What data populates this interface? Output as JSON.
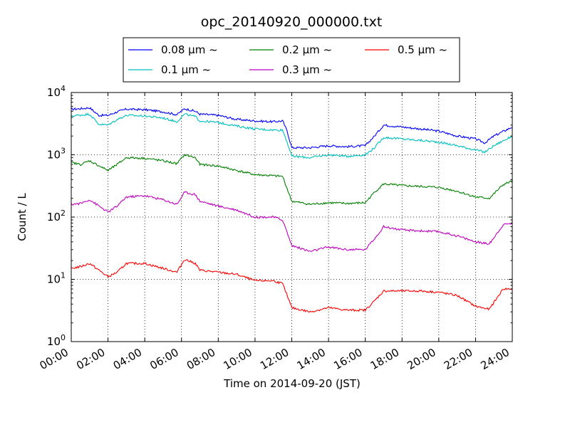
{
  "chart_data": {
    "type": "line",
    "title": "opc_20140920_000000.txt",
    "xlabel": "Time on 2014-09-20 (JST)",
    "ylabel": "Count / L",
    "xscale": "linear",
    "yscale": "log",
    "xlim": [
      "00:00",
      "24:00"
    ],
    "ylim": [
      1,
      10000
    ],
    "grid": true,
    "legend_position": "top-center",
    "x_ticks": [
      "00:00",
      "02:00",
      "04:00",
      "06:00",
      "08:00",
      "10:00",
      "12:00",
      "14:00",
      "16:00",
      "18:00",
      "20:00",
      "22:00",
      "24:00"
    ],
    "y_ticks": [
      {
        "base": "10",
        "exp": "0",
        "value": 1
      },
      {
        "base": "10",
        "exp": "1",
        "value": 10
      },
      {
        "base": "10",
        "exp": "2",
        "value": 100
      },
      {
        "base": "10",
        "exp": "3",
        "value": 1000
      },
      {
        "base": "10",
        "exp": "4",
        "value": 10000
      }
    ],
    "series": [
      {
        "name": "0.08 µm ~",
        "color": "#0000ff",
        "points": [
          [
            "00:00",
            5400
          ],
          [
            "00:30",
            5500
          ],
          [
            "01:00",
            5700
          ],
          [
            "01:30",
            4300
          ],
          [
            "02:00",
            4300
          ],
          [
            "02:30",
            4900
          ],
          [
            "03:00",
            5400
          ],
          [
            "04:00",
            5300
          ],
          [
            "05:00",
            4900
          ],
          [
            "05:45",
            4400
          ],
          [
            "06:10",
            5500
          ],
          [
            "06:45",
            5000
          ],
          [
            "07:00",
            4500
          ],
          [
            "08:00",
            4300
          ],
          [
            "09:00",
            3700
          ],
          [
            "10:00",
            3500
          ],
          [
            "11:00",
            3400
          ],
          [
            "11:30",
            3500
          ],
          [
            "11:45",
            2400
          ],
          [
            "12:00",
            1300
          ],
          [
            "13:00",
            1300
          ],
          [
            "14:00",
            1400
          ],
          [
            "15:00",
            1350
          ],
          [
            "16:00",
            1400
          ],
          [
            "16:30",
            2000
          ],
          [
            "17:00",
            3000
          ],
          [
            "18:00",
            2800
          ],
          [
            "19:00",
            2600
          ],
          [
            "20:00",
            2400
          ],
          [
            "21:00",
            2000
          ],
          [
            "22:00",
            1800
          ],
          [
            "22:30",
            1550
          ],
          [
            "23:00",
            2000
          ],
          [
            "24:00",
            2800
          ]
        ]
      },
      {
        "name": "0.1 µm ~",
        "color": "#00bfbf",
        "points": [
          [
            "00:00",
            4200
          ],
          [
            "01:00",
            4500
          ],
          [
            "01:30",
            3100
          ],
          [
            "02:00",
            3000
          ],
          [
            "02:30",
            3700
          ],
          [
            "03:00",
            4300
          ],
          [
            "04:00",
            4200
          ],
          [
            "05:00",
            3900
          ],
          [
            "05:45",
            3400
          ],
          [
            "06:10",
            4500
          ],
          [
            "06:45",
            4100
          ],
          [
            "07:00",
            3500
          ],
          [
            "08:00",
            3300
          ],
          [
            "09:00",
            2900
          ],
          [
            "10:00",
            2600
          ],
          [
            "11:00",
            2500
          ],
          [
            "11:30",
            2500
          ],
          [
            "11:45",
            1600
          ],
          [
            "12:00",
            950
          ],
          [
            "13:00",
            900
          ],
          [
            "14:00",
            1000
          ],
          [
            "15:00",
            950
          ],
          [
            "16:00",
            1000
          ],
          [
            "16:30",
            1300
          ],
          [
            "17:00",
            1900
          ],
          [
            "18:00",
            1800
          ],
          [
            "19:00",
            1700
          ],
          [
            "20:00",
            1600
          ],
          [
            "21:00",
            1400
          ],
          [
            "22:00",
            1200
          ],
          [
            "22:30",
            1100
          ],
          [
            "23:00",
            1400
          ],
          [
            "24:00",
            2000
          ]
        ]
      },
      {
        "name": "0.2 µm ~",
        "color": "#008000",
        "points": [
          [
            "00:00",
            750
          ],
          [
            "00:30",
            700
          ],
          [
            "01:00",
            800
          ],
          [
            "02:00",
            560
          ],
          [
            "02:30",
            700
          ],
          [
            "03:00",
            900
          ],
          [
            "04:00",
            880
          ],
          [
            "05:00",
            800
          ],
          [
            "05:45",
            720
          ],
          [
            "06:10",
            1000
          ],
          [
            "06:45",
            900
          ],
          [
            "07:00",
            700
          ],
          [
            "08:00",
            660
          ],
          [
            "09:00",
            560
          ],
          [
            "10:00",
            480
          ],
          [
            "11:00",
            460
          ],
          [
            "11:30",
            450
          ],
          [
            "12:00",
            180
          ],
          [
            "13:00",
            160
          ],
          [
            "14:00",
            170
          ],
          [
            "15:00",
            165
          ],
          [
            "16:00",
            170
          ],
          [
            "16:30",
            250
          ],
          [
            "17:00",
            340
          ],
          [
            "18:00",
            320
          ],
          [
            "19:00",
            310
          ],
          [
            "20:00",
            300
          ],
          [
            "21:00",
            260
          ],
          [
            "22:00",
            210
          ],
          [
            "22:45",
            200
          ],
          [
            "23:30",
            330
          ],
          [
            "24:00",
            380
          ]
        ]
      },
      {
        "name": "0.3 µm ~",
        "color": "#bf00bf",
        "points": [
          [
            "00:00",
            160
          ],
          [
            "00:30",
            165
          ],
          [
            "01:00",
            190
          ],
          [
            "02:00",
            120
          ],
          [
            "02:30",
            150
          ],
          [
            "03:00",
            210
          ],
          [
            "04:00",
            220
          ],
          [
            "05:00",
            190
          ],
          [
            "05:45",
            160
          ],
          [
            "06:10",
            250
          ],
          [
            "06:45",
            230
          ],
          [
            "07:00",
            180
          ],
          [
            "08:00",
            150
          ],
          [
            "09:00",
            130
          ],
          [
            "10:00",
            100
          ],
          [
            "11:00",
            100
          ],
          [
            "11:30",
            90
          ],
          [
            "12:00",
            35
          ],
          [
            "13:00",
            28
          ],
          [
            "14:00",
            33
          ],
          [
            "15:00",
            30
          ],
          [
            "16:00",
            30
          ],
          [
            "16:30",
            45
          ],
          [
            "17:00",
            70
          ],
          [
            "18:00",
            62
          ],
          [
            "19:00",
            60
          ],
          [
            "20:00",
            58
          ],
          [
            "21:00",
            50
          ],
          [
            "22:00",
            40
          ],
          [
            "22:45",
            37
          ],
          [
            "23:30",
            75
          ],
          [
            "24:00",
            80
          ]
        ]
      },
      {
        "name": "0.5 µm ~",
        "color": "#ff0000",
        "points": [
          [
            "00:00",
            15
          ],
          [
            "00:30",
            16
          ],
          [
            "01:00",
            18
          ],
          [
            "02:00",
            11
          ],
          [
            "02:30",
            13
          ],
          [
            "03:00",
            18
          ],
          [
            "04:00",
            18
          ],
          [
            "05:00",
            15
          ],
          [
            "05:45",
            13
          ],
          [
            "06:10",
            21
          ],
          [
            "06:45",
            18
          ],
          [
            "07:00",
            14
          ],
          [
            "08:00",
            13
          ],
          [
            "09:00",
            12
          ],
          [
            "10:00",
            9.5
          ],
          [
            "11:00",
            9.5
          ],
          [
            "11:30",
            8.5
          ],
          [
            "12:00",
            3.5
          ],
          [
            "13:00",
            3
          ],
          [
            "14:00",
            3.5
          ],
          [
            "15:00",
            3.2
          ],
          [
            "16:00",
            3.2
          ],
          [
            "16:30",
            4.5
          ],
          [
            "17:00",
            6.5
          ],
          [
            "18:00",
            6.5
          ],
          [
            "19:00",
            6.5
          ],
          [
            "20:00",
            6.2
          ],
          [
            "21:00",
            5.5
          ],
          [
            "22:00",
            3.7
          ],
          [
            "22:45",
            3.3
          ],
          [
            "23:30",
            7
          ],
          [
            "24:00",
            7
          ]
        ]
      }
    ]
  }
}
